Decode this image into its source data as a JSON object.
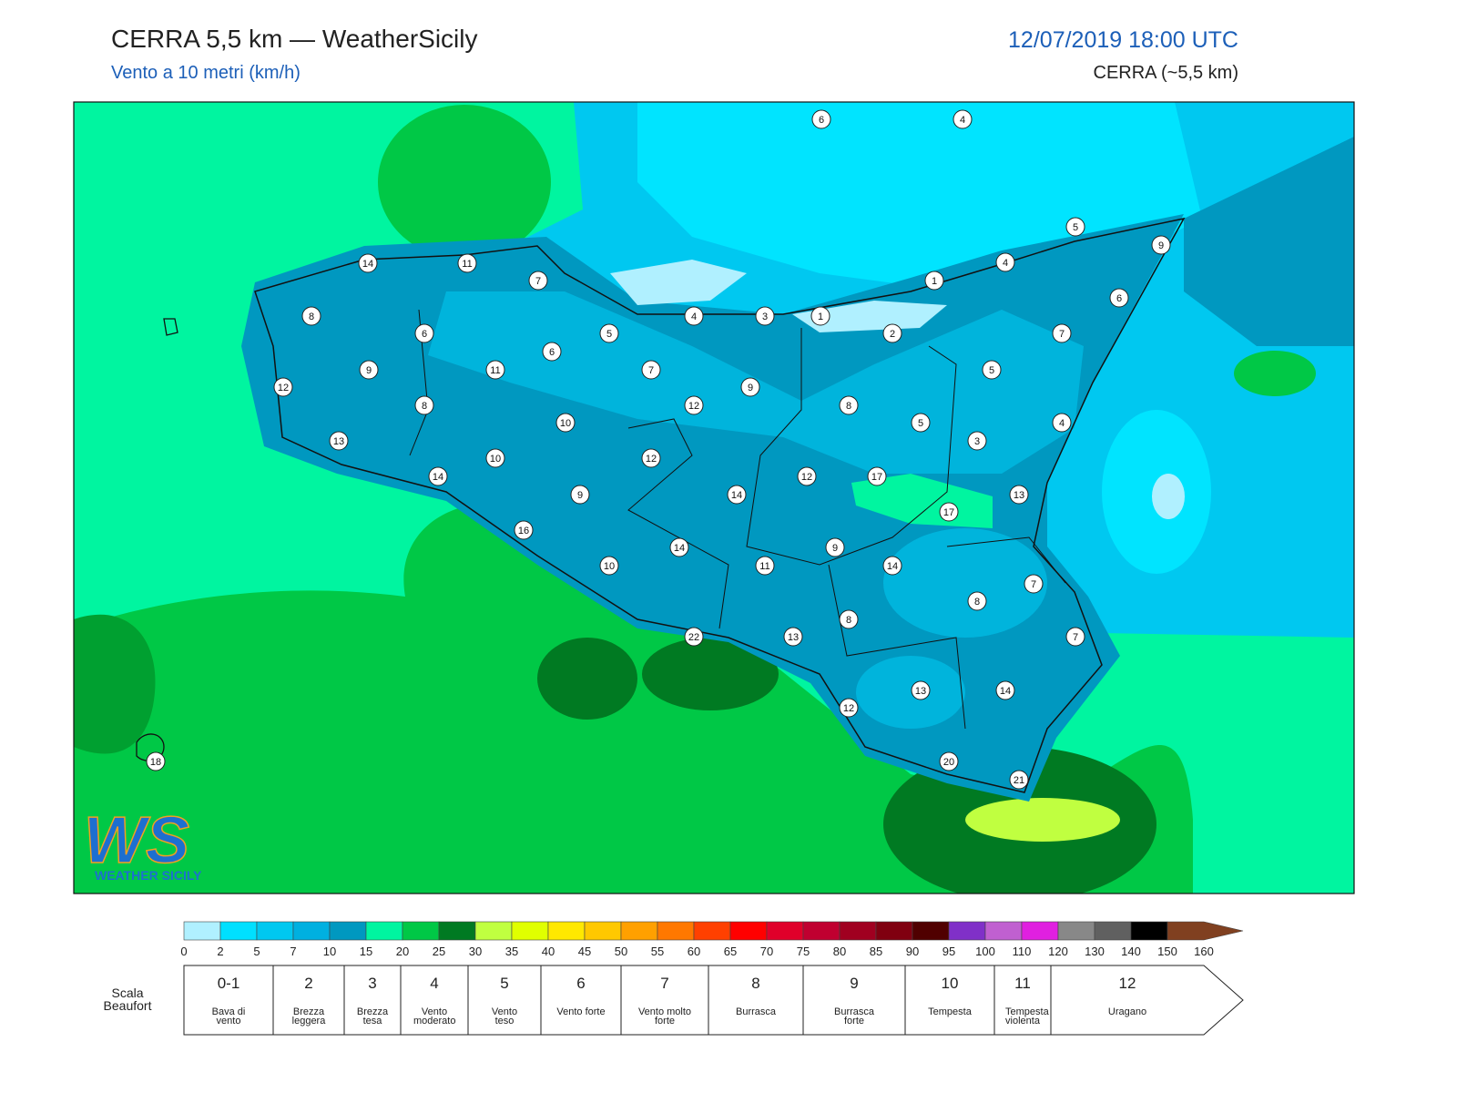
{
  "header": {
    "title": "CERRA 5,5 km — WeatherSicily",
    "subtitle": "Vento a 10 metri (km/h)",
    "date": "12/07/2019 18:00 UTC",
    "model": "CERRA (~5,5 km)"
  },
  "map": {
    "stations": [
      6,
      4,
      5,
      9,
      14,
      11,
      7,
      4,
      1,
      6,
      8,
      4,
      3,
      1,
      6,
      5,
      2,
      7,
      6,
      9,
      11,
      7,
      5,
      12,
      9,
      8,
      12,
      8,
      10,
      5,
      4,
      13,
      3,
      10,
      12,
      14,
      12,
      17,
      9,
      14,
      13,
      17,
      16,
      14,
      9,
      10,
      11,
      14,
      7,
      8,
      8,
      22,
      13,
      7,
      13,
      14,
      12,
      20,
      18,
      21
    ]
  },
  "colorbar": {
    "ticks": [
      0,
      2,
      5,
      7,
      10,
      15,
      20,
      25,
      30,
      35,
      40,
      45,
      50,
      55,
      60,
      65,
      70,
      75,
      80,
      85,
      90,
      95,
      100,
      110,
      120,
      130,
      140,
      150,
      160
    ],
    "colors": [
      "#b0f0ff",
      "#00e0ff",
      "#00c8f0",
      "#00b0e0",
      "#0098c0",
      "#00f5a0",
      "#00c846",
      "#007a22",
      "#c0ff40",
      "#e0ff00",
      "#ffe800",
      "#ffc800",
      "#ffa000",
      "#ff7800",
      "#ff4000",
      "#ff0000",
      "#e0002a",
      "#c00030",
      "#a00020",
      "#800010",
      "#500000",
      "#8030c8",
      "#c060d0",
      "#e020e0",
      "#888888",
      "#606060",
      "#000000",
      "#804020",
      "#d08848"
    ]
  },
  "beaufort": {
    "label": "Scala Beaufort",
    "classes": [
      {
        "force": "0-1",
        "description": "Bava di vento"
      },
      {
        "force": "2",
        "description": "Brezza leggera"
      },
      {
        "force": "3",
        "description": "Brezza tesa"
      },
      {
        "force": "4",
        "description": "Vento moderato"
      },
      {
        "force": "5",
        "description": "Vento teso"
      },
      {
        "force": "6",
        "description": "Vento forte"
      },
      {
        "force": "7",
        "description": "Vento molto forte"
      },
      {
        "force": "8",
        "description": "Burrasca"
      },
      {
        "force": "9",
        "description": "Burrasca forte"
      },
      {
        "force": "10",
        "description": "Tempesta"
      },
      {
        "force": "11",
        "description": "Tempesta violenta"
      },
      {
        "force": "12",
        "description": "Uragano"
      }
    ]
  },
  "logo": {
    "letters": "WS",
    "caption": "WEATHER SICILY"
  }
}
